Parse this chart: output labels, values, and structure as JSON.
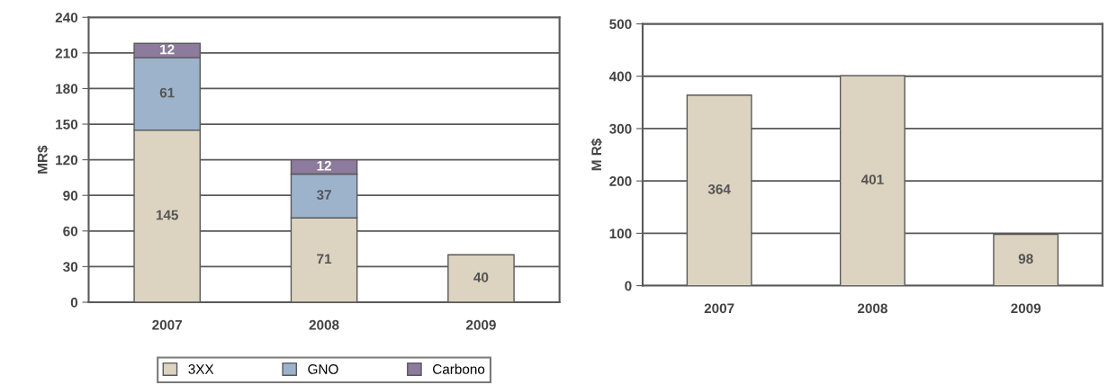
{
  "chart_data": [
    {
      "type": "bar",
      "stacked": true,
      "ylabel": "MR$",
      "categories": [
        "2007",
        "2008",
        "2009"
      ],
      "ylim": [
        0,
        240
      ],
      "yticks": [
        0,
        30,
        60,
        90,
        120,
        150,
        180,
        210,
        240
      ],
      "grid": "y",
      "legend": "bottom",
      "data_labels": true,
      "series": [
        {
          "name": "3XX",
          "color": "#dcd3c0",
          "values": [
            145,
            71,
            40
          ]
        },
        {
          "name": "GNO",
          "color": "#9db3cc",
          "values": [
            61,
            37,
            null
          ]
        },
        {
          "name": "Carbono",
          "color": "#8c7b9c",
          "values": [
            12,
            12,
            null
          ]
        }
      ]
    },
    {
      "type": "bar",
      "ylabel": "M R$",
      "categories": [
        "2007",
        "2008",
        "2009"
      ],
      "ylim": [
        0,
        500
      ],
      "yticks": [
        0,
        100,
        200,
        300,
        400,
        500
      ],
      "grid": "y",
      "data_labels": true,
      "series": [
        {
          "color": "#dcd3c0",
          "values": [
            364,
            401,
            98
          ]
        }
      ]
    }
  ]
}
